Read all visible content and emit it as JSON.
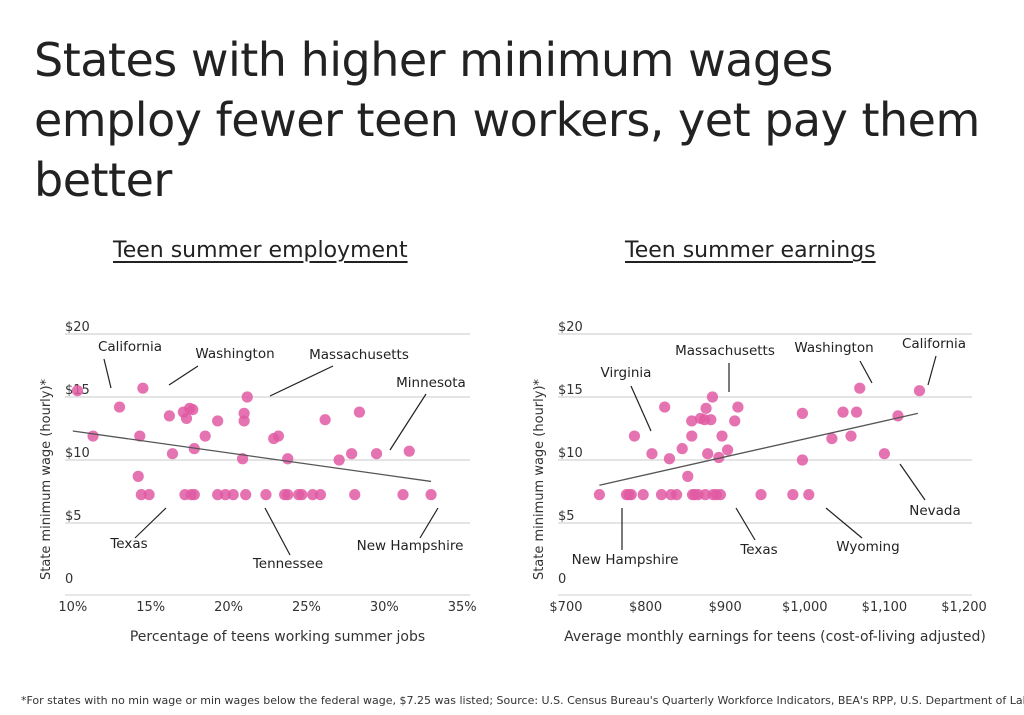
{
  "headline": "States with higher minimum wages employ fewer teen workers, yet pay them better",
  "footnote": "*For states with no min wage or min wages below the federal wage, $7.25 was listed; Source: U.S. Census Bureau's Quarterly Workforce Indicators, BEA's RPP, U.S. Department of Labor",
  "colors": {
    "points": "#e05aa3",
    "trend": "#555555",
    "grid": "#c8c8c8",
    "annotation": "#222222"
  },
  "chart_data": [
    {
      "type": "scatter",
      "title": "Teen summer employment",
      "xlabel": "Percentage of teens working summer jobs",
      "ylabel": "State minimum wage (hourly)*",
      "xlim": [
        9.5,
        35.5
      ],
      "ylim": [
        0,
        20
      ],
      "x_ticks": [
        10,
        15,
        20,
        25,
        30,
        35
      ],
      "x_tick_labels": [
        "10%",
        "15%",
        "20%",
        "25%",
        "30%",
        "35%"
      ],
      "y_ticks": [
        0,
        5,
        10,
        15,
        20
      ],
      "y_tick_labels": [
        "0",
        "$5",
        "$10",
        "$15",
        "$20"
      ],
      "grid": "horizontal",
      "trendline": [
        [
          10,
          12.3
        ],
        [
          33,
          8.3
        ]
      ],
      "points": [
        [
          10.3,
          15.5
        ],
        [
          11.3,
          11.9
        ],
        [
          13.0,
          14.2
        ],
        [
          14.2,
          8.7
        ],
        [
          14.3,
          11.9
        ],
        [
          14.5,
          15.7
        ],
        [
          14.4,
          7.25
        ],
        [
          14.9,
          7.25
        ],
        [
          16.2,
          13.5
        ],
        [
          16.4,
          10.5
        ],
        [
          17.1,
          13.8
        ],
        [
          17.3,
          13.3
        ],
        [
          17.2,
          7.25
        ],
        [
          17.5,
          14.1
        ],
        [
          17.7,
          14.0
        ],
        [
          17.6,
          7.25
        ],
        [
          17.8,
          7.25
        ],
        [
          17.8,
          10.9
        ],
        [
          18.5,
          11.9
        ],
        [
          19.3,
          13.1
        ],
        [
          19.3,
          7.25
        ],
        [
          19.8,
          7.25
        ],
        [
          20.3,
          7.25
        ],
        [
          20.9,
          10.1
        ],
        [
          21.0,
          13.7
        ],
        [
          21.0,
          13.1
        ],
        [
          21.1,
          7.25
        ],
        [
          21.2,
          15.0
        ],
        [
          22.4,
          7.25
        ],
        [
          22.9,
          11.7
        ],
        [
          23.2,
          11.9
        ],
        [
          23.6,
          7.25
        ],
        [
          23.8,
          7.25
        ],
        [
          23.8,
          10.1
        ],
        [
          24.5,
          7.25
        ],
        [
          24.7,
          7.25
        ],
        [
          25.4,
          7.25
        ],
        [
          25.9,
          7.25
        ],
        [
          26.2,
          13.2
        ],
        [
          27.1,
          10.0
        ],
        [
          27.9,
          10.5
        ],
        [
          28.1,
          7.25
        ],
        [
          28.4,
          13.8
        ],
        [
          29.5,
          10.5
        ],
        [
          31.2,
          7.25
        ],
        [
          31.6,
          10.7
        ],
        [
          33.0,
          7.25
        ]
      ],
      "annotations": [
        {
          "label": "California",
          "x": 10.3,
          "y": 15.5
        },
        {
          "label": "Washington",
          "x": 14.5,
          "y": 15.7
        },
        {
          "label": "Massachusetts",
          "x": 21.2,
          "y": 15.0
        },
        {
          "label": "Minnesota",
          "x": 29.5,
          "y": 10.5
        },
        {
          "label": "Texas",
          "x": 14.4,
          "y": 7.25
        },
        {
          "label": "Tennessee",
          "x": 21.1,
          "y": 7.25
        },
        {
          "label": "New Hampshire",
          "x": 33.0,
          "y": 7.25
        }
      ]
    },
    {
      "type": "scatter",
      "title": "Teen summer earnings",
      "xlabel": "Average monthly earnings for teens (cost-of-living adjusted)",
      "ylabel": "State minimum wage (hourly)*",
      "xlim": [
        690,
        1210
      ],
      "ylim": [
        0,
        20
      ],
      "x_ticks": [
        700,
        800,
        900,
        1000,
        1100,
        1200
      ],
      "x_tick_labels": [
        "$700",
        "$800",
        "$900",
        "$1,000",
        "$1,100",
        "$1,200"
      ],
      "y_ticks": [
        0,
        5,
        10,
        15,
        20
      ],
      "y_tick_labels": [
        "0",
        "$5",
        "$10",
        "$15",
        "$20"
      ],
      "grid": "horizontal",
      "trendline": [
        [
          742,
          8.0
        ],
        [
          1142,
          13.7
        ]
      ],
      "points": [
        [
          742,
          7.25
        ],
        [
          776,
          7.25
        ],
        [
          779,
          7.25
        ],
        [
          782,
          7.25
        ],
        [
          786,
          11.9
        ],
        [
          797,
          7.25
        ],
        [
          808,
          10.5
        ],
        [
          820,
          7.25
        ],
        [
          824,
          14.2
        ],
        [
          830,
          10.1
        ],
        [
          832,
          7.25
        ],
        [
          839,
          7.25
        ],
        [
          846,
          10.9
        ],
        [
          853,
          8.7
        ],
        [
          858,
          13.1
        ],
        [
          858,
          11.9
        ],
        [
          859,
          7.25
        ],
        [
          862,
          7.25
        ],
        [
          866,
          7.25
        ],
        [
          869,
          13.3
        ],
        [
          874,
          13.2
        ],
        [
          875,
          7.25
        ],
        [
          876,
          14.1
        ],
        [
          878,
          10.5
        ],
        [
          882,
          13.2
        ],
        [
          884,
          15.0
        ],
        [
          885,
          7.25
        ],
        [
          889,
          7.25
        ],
        [
          892,
          10.2
        ],
        [
          894,
          7.25
        ],
        [
          896,
          11.9
        ],
        [
          903,
          10.8
        ],
        [
          912,
          13.1
        ],
        [
          916,
          14.2
        ],
        [
          945,
          7.25
        ],
        [
          985,
          7.25
        ],
        [
          997,
          13.7
        ],
        [
          997,
          10.0
        ],
        [
          1005,
          7.25
        ],
        [
          1034,
          11.7
        ],
        [
          1048,
          13.8
        ],
        [
          1058,
          11.9
        ],
        [
          1065,
          13.8
        ],
        [
          1069,
          15.7
        ],
        [
          1100,
          10.5
        ],
        [
          1117,
          13.5
        ],
        [
          1144,
          15.5
        ]
      ],
      "annotations": [
        {
          "label": "Virginia",
          "x": 786,
          "y": 11.9
        },
        {
          "label": "Massachusetts",
          "x": 884,
          "y": 15.0
        },
        {
          "label": "Washington",
          "x": 1069,
          "y": 15.7
        },
        {
          "label": "California",
          "x": 1144,
          "y": 15.5
        },
        {
          "label": "New Hampshire",
          "x": 742,
          "y": 7.25
        },
        {
          "label": "Texas",
          "x": 894,
          "y": 7.25
        },
        {
          "label": "Wyoming",
          "x": 1005,
          "y": 7.25
        },
        {
          "label": "Nevada",
          "x": 1100,
          "y": 10.5
        }
      ]
    }
  ]
}
